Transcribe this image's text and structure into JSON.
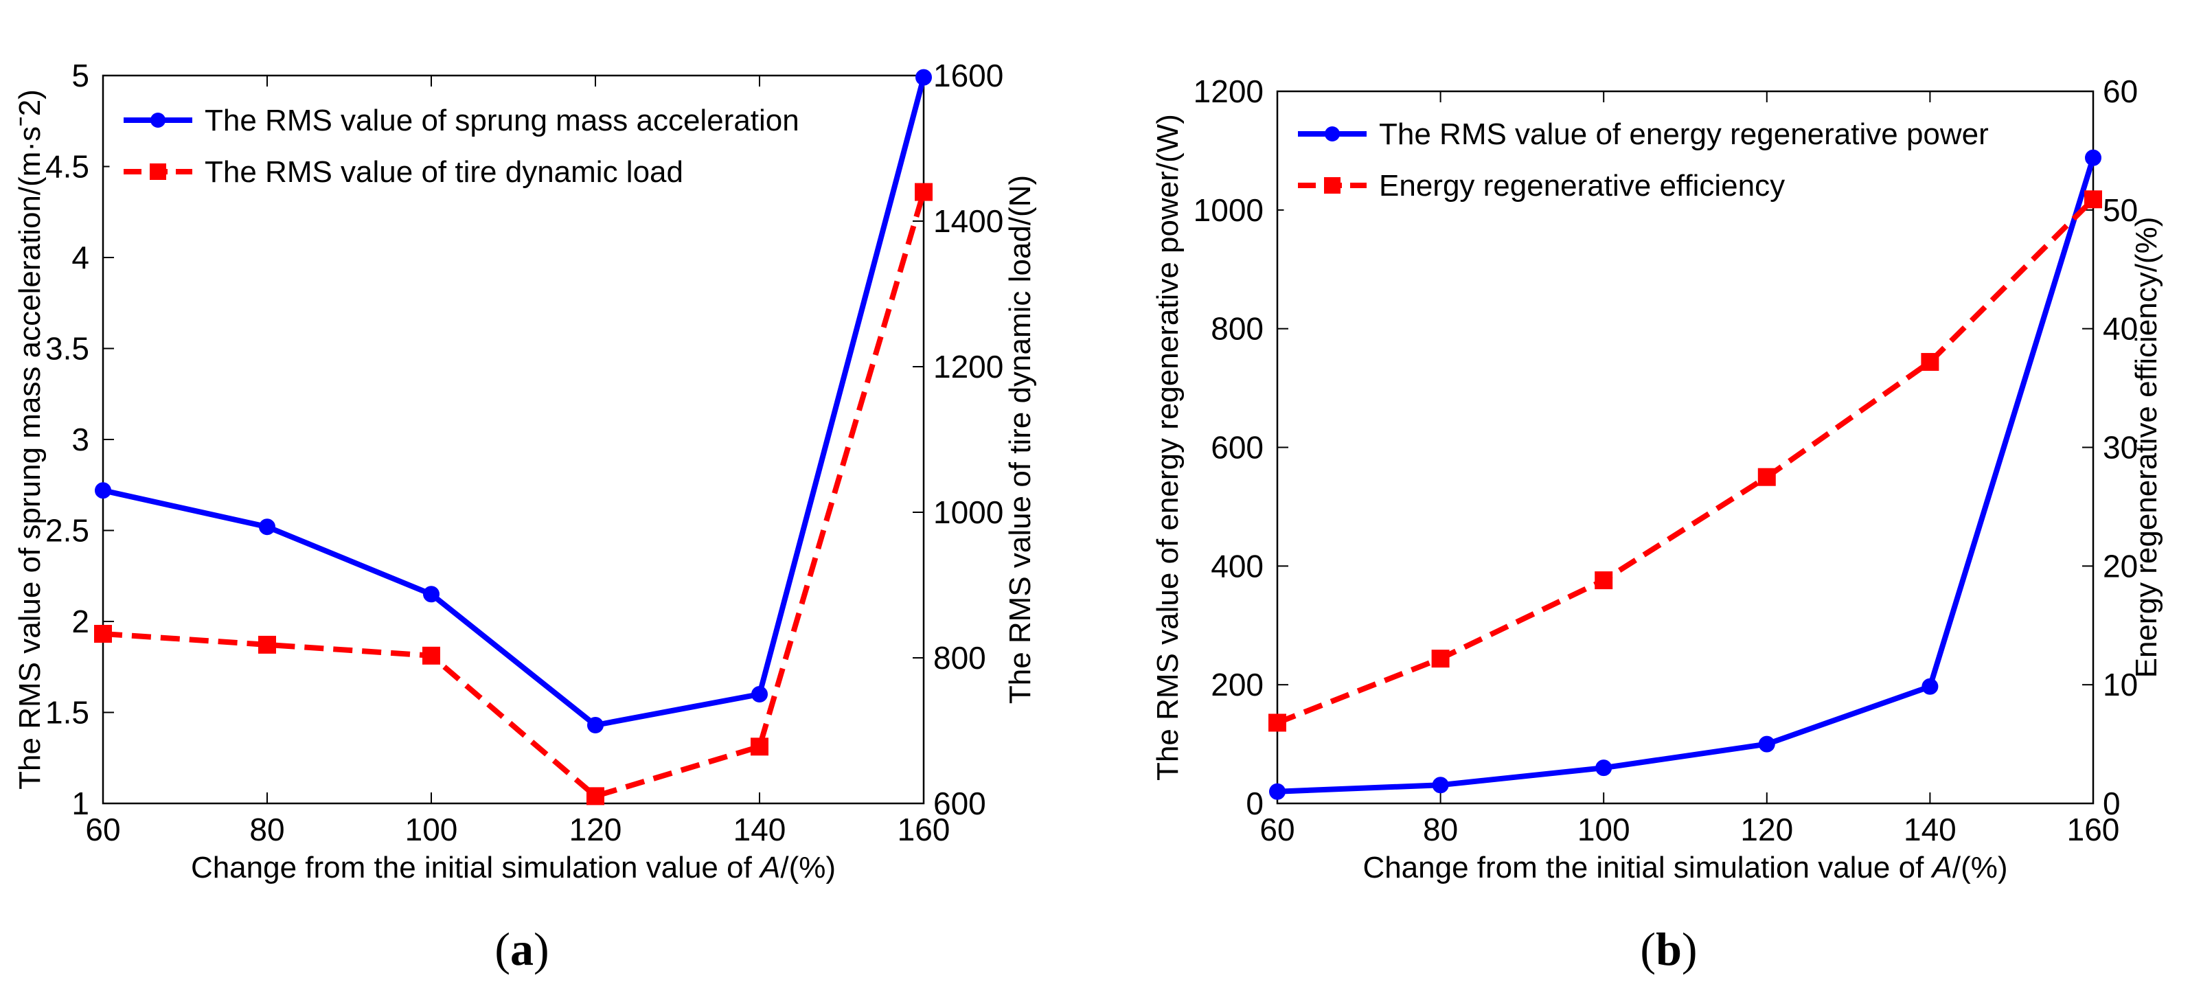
{
  "chart_data": [
    {
      "type": "line",
      "panel_label": "a",
      "categories": [
        "60",
        "80",
        "100",
        "120",
        "140",
        "160"
      ],
      "x": [
        60,
        80,
        100,
        120,
        140,
        160
      ],
      "xlim": [
        60,
        160
      ],
      "xticks": [
        "60",
        "80",
        "100",
        "120",
        "140",
        "160"
      ],
      "xlabel_prefix": "Change from the initial simulation value of ",
      "xlabel_var": "A",
      "xlabel_suffix": "/(%)",
      "ylabel": "The RMS value of sprung mass acceleration/(m·sˉ2)",
      "ylim": [
        1,
        5
      ],
      "yticks": [
        "1",
        "1.5",
        "2",
        "2.5",
        "3",
        "3.5",
        "4",
        "4.5",
        "5"
      ],
      "y2label": "The RMS value of tire dynamic load/(N)",
      "y2lim": [
        600,
        1600
      ],
      "y2ticks": [
        "600",
        "800",
        "1000",
        "1200",
        "1400",
        "1600"
      ],
      "legend_position": "top-left",
      "grid": false,
      "series": [
        {
          "name": "The RMS value of sprung mass acceleration",
          "axis": "left",
          "color": "#0000FF",
          "style": "solid",
          "marker": "circle",
          "values": [
            2.72,
            2.52,
            2.15,
            1.43,
            1.6,
            4.99
          ]
        },
        {
          "name": "The RMS value of tire dynamic load",
          "axis": "right",
          "color": "#FF0000",
          "style": "dashed",
          "marker": "square",
          "values": [
            833,
            818,
            803,
            610,
            678,
            1440
          ]
        }
      ]
    },
    {
      "type": "line",
      "panel_label": "b",
      "categories": [
        "60",
        "80",
        "100",
        "120",
        "140",
        "160"
      ],
      "x": [
        60,
        80,
        100,
        120,
        140,
        160
      ],
      "xlim": [
        60,
        160
      ],
      "xticks": [
        "60",
        "80",
        "100",
        "120",
        "140",
        "160"
      ],
      "xlabel_prefix": "Change from the initial simulation value of ",
      "xlabel_var": "A",
      "xlabel_suffix": "/(%)",
      "ylabel": "The RMS value of energy regenerative power/(W)",
      "ylim": [
        0,
        1200
      ],
      "yticks": [
        "0",
        "200",
        "400",
        "600",
        "800",
        "1000",
        "1200"
      ],
      "y2label": "Energy regenerative efficiency/(%)",
      "y2lim": [
        0,
        60
      ],
      "y2ticks": [
        "0",
        "10",
        "20",
        "30",
        "40",
        "50",
        "60"
      ],
      "legend_position": "top-left",
      "grid": false,
      "series": [
        {
          "name": "The RMS value of energy regenerative power",
          "axis": "left",
          "color": "#0000FF",
          "style": "solid",
          "marker": "circle",
          "values": [
            20,
            31,
            60,
            100,
            197,
            1088
          ]
        },
        {
          "name": "Energy regenerative efficiency",
          "axis": "right",
          "color": "#FF0000",
          "style": "dashed",
          "marker": "square",
          "values": [
            6.8,
            12.2,
            18.8,
            27.5,
            37.2,
            50.9
          ]
        }
      ]
    }
  ]
}
